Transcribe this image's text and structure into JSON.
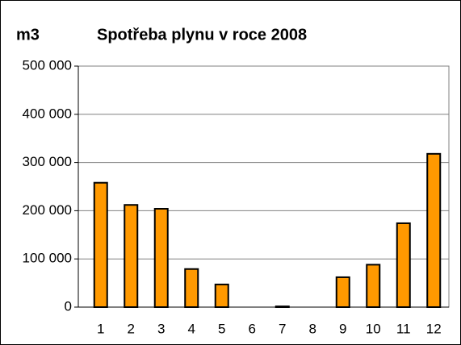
{
  "chart_data": {
    "type": "bar",
    "title": "Spotřeba plynu v roce 2008",
    "y_label": "m3",
    "categories": [
      "1",
      "2",
      "3",
      "4",
      "5",
      "6",
      "7",
      "8",
      "9",
      "10",
      "11",
      "12"
    ],
    "values": [
      258000,
      212000,
      204000,
      79000,
      47000,
      0,
      1500,
      0,
      62000,
      88000,
      174000,
      318000
    ],
    "color": "#ff9900",
    "ylim": [
      0,
      500000
    ],
    "yticks": [
      0,
      {
        "value": 100000,
        "label": "100 000"
      },
      {
        "value": 200000,
        "label": "200 000"
      },
      {
        "value": 300000,
        "label": "300 000"
      },
      {
        "value": 400000,
        "label": "400 000"
      },
      {
        "value": 500000,
        "label": "500 000"
      }
    ],
    "grid": true
  }
}
